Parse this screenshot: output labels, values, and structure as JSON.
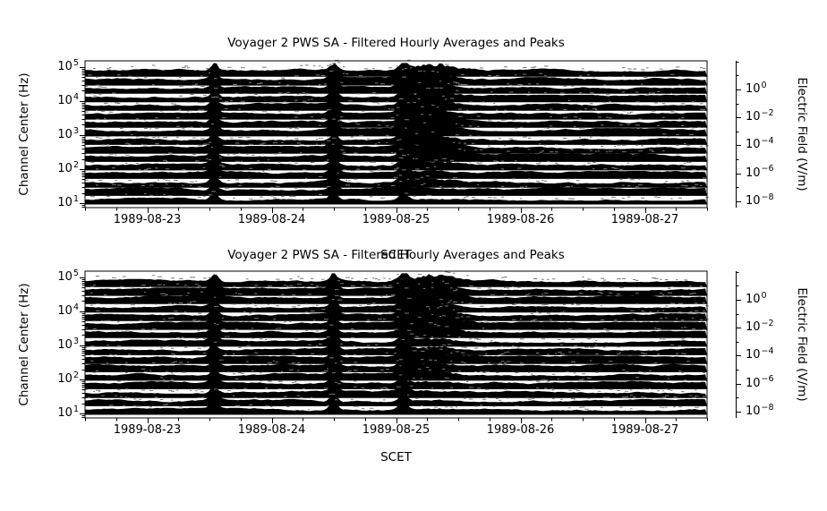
{
  "figure": {
    "background": "#ffffff"
  },
  "chart_data": [
    {
      "type": "line-spectrogram",
      "title": "Voyager 2 PWS SA - Filtered Hourly Averages and Peaks",
      "xlabel": "SCET",
      "ylabel_left": "Channel Center (Hz)",
      "ylabel_right": "Electric Field (V/m)",
      "xlim_days": [
        22.5,
        27.5
      ],
      "x_ticks": [
        {
          "value": 23,
          "label": "1989-08-23"
        },
        {
          "value": 24,
          "label": "1989-08-24"
        },
        {
          "value": 25,
          "label": "1989-08-25"
        },
        {
          "value": 26,
          "label": "1989-08-26"
        },
        {
          "value": 27,
          "label": "1989-08-27"
        }
      ],
      "x_minor_step_days": 0.25,
      "ylim_left_log10": [
        0.87,
        5.18
      ],
      "left_ticks": [
        {
          "base": "10",
          "exp": "5",
          "value": 100000
        },
        {
          "base": "10",
          "exp": "4",
          "value": 10000
        },
        {
          "base": "10",
          "exp": "3",
          "value": 1000
        },
        {
          "base": "10",
          "exp": "2",
          "value": 100
        },
        {
          "base": "10",
          "exp": "1",
          "value": 10
        }
      ],
      "ylim_right_log10": [
        -8.45,
        2.05
      ],
      "right_ticks": [
        {
          "base": "10",
          "exp": "0",
          "exp_value": 0
        },
        {
          "base": "10",
          "exp": "−2",
          "exp_value": -2
        },
        {
          "base": "10",
          "exp": "−4",
          "exp_value": -4
        },
        {
          "base": "10",
          "exp": "−6",
          "exp_value": -6
        },
        {
          "base": "10",
          "exp": "−8",
          "exp_value": -8
        }
      ],
      "right_minor_exps": [
        2,
        1,
        -1,
        -3,
        -5,
        -7
      ],
      "channel_centers_hz": [
        10,
        17.8,
        31.1,
        56.2,
        100,
        178,
        311,
        562,
        1000,
        1780,
        3110,
        5620,
        10000,
        17800,
        31100,
        56200
      ],
      "events": [
        {
          "t": 23.54,
          "sigma": 0.03,
          "strength": 8,
          "channel_bias": 0
        },
        {
          "t": 24.5,
          "sigma": 0.03,
          "strength": 8,
          "channel_bias": 0
        },
        {
          "t": 25.06,
          "sigma": 0.035,
          "strength": 9,
          "channel_bias": 0.15
        },
        {
          "t": 25.3,
          "sigma": 0.16,
          "strength": 7,
          "channel_bias": 0.75
        }
      ],
      "colors": {
        "trace": "#000000",
        "peaks": "#7a7a7a",
        "frame": "#000000"
      }
    },
    {
      "type": "line-spectrogram",
      "title": "Voyager 2 PWS SA - Filtered Hourly Averages and Peaks",
      "xlabel": "SCET",
      "ylabel_left": "Channel Center (Hz)",
      "ylabel_right": "Electric Field (V/m)",
      "xlim_days": [
        22.5,
        27.5
      ],
      "x_ticks": [
        {
          "value": 23,
          "label": "1989-08-23"
        },
        {
          "value": 24,
          "label": "1989-08-24"
        },
        {
          "value": 25,
          "label": "1989-08-25"
        },
        {
          "value": 26,
          "label": "1989-08-26"
        },
        {
          "value": 27,
          "label": "1989-08-27"
        }
      ],
      "x_minor_step_days": 0.25,
      "ylim_left_log10": [
        0.87,
        5.18
      ],
      "left_ticks": [
        {
          "base": "10",
          "exp": "5",
          "value": 100000
        },
        {
          "base": "10",
          "exp": "4",
          "value": 10000
        },
        {
          "base": "10",
          "exp": "3",
          "value": 1000
        },
        {
          "base": "10",
          "exp": "2",
          "value": 100
        },
        {
          "base": "10",
          "exp": "1",
          "value": 10
        }
      ],
      "ylim_right_log10": [
        -8.45,
        2.05
      ],
      "right_ticks": [
        {
          "base": "10",
          "exp": "0",
          "exp_value": 0
        },
        {
          "base": "10",
          "exp": "−2",
          "exp_value": -2
        },
        {
          "base": "10",
          "exp": "−4",
          "exp_value": -4
        },
        {
          "base": "10",
          "exp": "−6",
          "exp_value": -6
        },
        {
          "base": "10",
          "exp": "−8",
          "exp_value": -8
        }
      ],
      "right_minor_exps": [
        2,
        1,
        -1,
        -3,
        -5,
        -7
      ],
      "channel_centers_hz": [
        10,
        17.8,
        31.1,
        56.2,
        100,
        178,
        311,
        562,
        1000,
        1780,
        3110,
        5620,
        10000,
        17800,
        31100,
        56200
      ],
      "events": [
        {
          "t": 23.54,
          "sigma": 0.03,
          "strength": 8,
          "channel_bias": 0
        },
        {
          "t": 24.5,
          "sigma": 0.03,
          "strength": 8,
          "channel_bias": 0
        },
        {
          "t": 25.06,
          "sigma": 0.035,
          "strength": 9,
          "channel_bias": 0.15
        },
        {
          "t": 25.3,
          "sigma": 0.16,
          "strength": 7,
          "channel_bias": 0.75
        }
      ],
      "colors": {
        "trace": "#000000",
        "peaks": "#7a7a7a",
        "frame": "#000000"
      }
    }
  ]
}
